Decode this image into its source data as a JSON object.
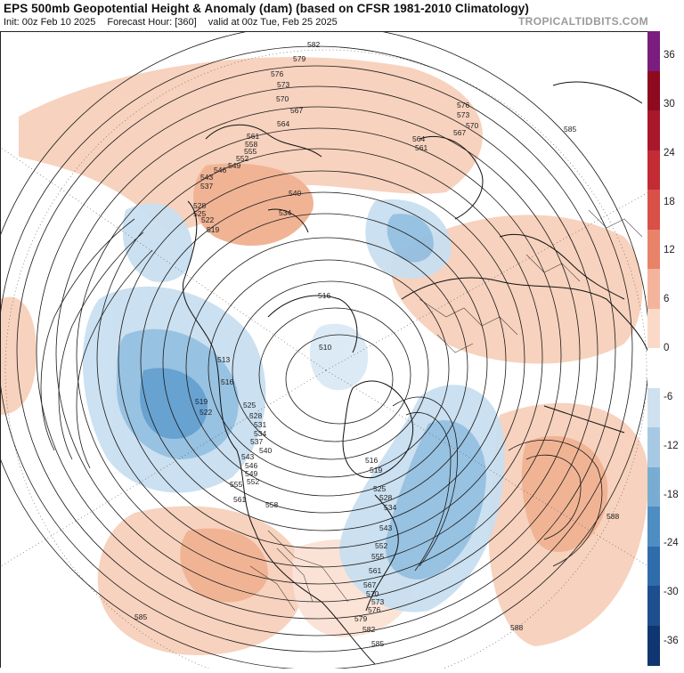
{
  "header": {
    "title": "EPS 500mb Geopotential Height & Anomaly (dam) (based on CFSR 1981-2010 Climatology)",
    "init": "Init: 00z Feb 10 2025",
    "forecast_hour": "Forecast Hour: [360]",
    "valid": "valid at 00z Tue, Feb 25 2025",
    "brand": "TROPICALTIDBITS.COM"
  },
  "colorbar": {
    "labels": [
      "36",
      "30",
      "24",
      "18",
      "12",
      "6",
      "0",
      "-6",
      "-12",
      "-18",
      "-24",
      "-30",
      "-36"
    ],
    "colors": [
      "#7b1d7e",
      "#8e0a1e",
      "#a8172a",
      "#c32b35",
      "#d85048",
      "#e8836a",
      "#f4b49b",
      "#fbd9c8",
      "#ffffff",
      "#cfe1ef",
      "#a7c9e3",
      "#78acd3",
      "#4e8dc2",
      "#2e6cab",
      "#1d4e8e",
      "#0f3670"
    ]
  },
  "map": {
    "colors": {
      "land_line": "#111111",
      "contour": "#1a1a1a",
      "anom_pos_light": "#f7d0bb",
      "anom_pos_mid": "#f0b190",
      "anom_neg_light": "#c9dff0",
      "anom_neg_mid": "#93bfe0",
      "anom_neg_dark": "#5f9ecf"
    },
    "contour_labels": [
      "582",
      "579",
      "576",
      "573",
      "570",
      "567",
      "564",
      "561",
      "558",
      "555",
      "552",
      "549",
      "546",
      "543",
      "540",
      "537",
      "534",
      "528",
      "525",
      "522",
      "519",
      "516",
      "513",
      "510",
      "588",
      "585",
      "531"
    ]
  }
}
